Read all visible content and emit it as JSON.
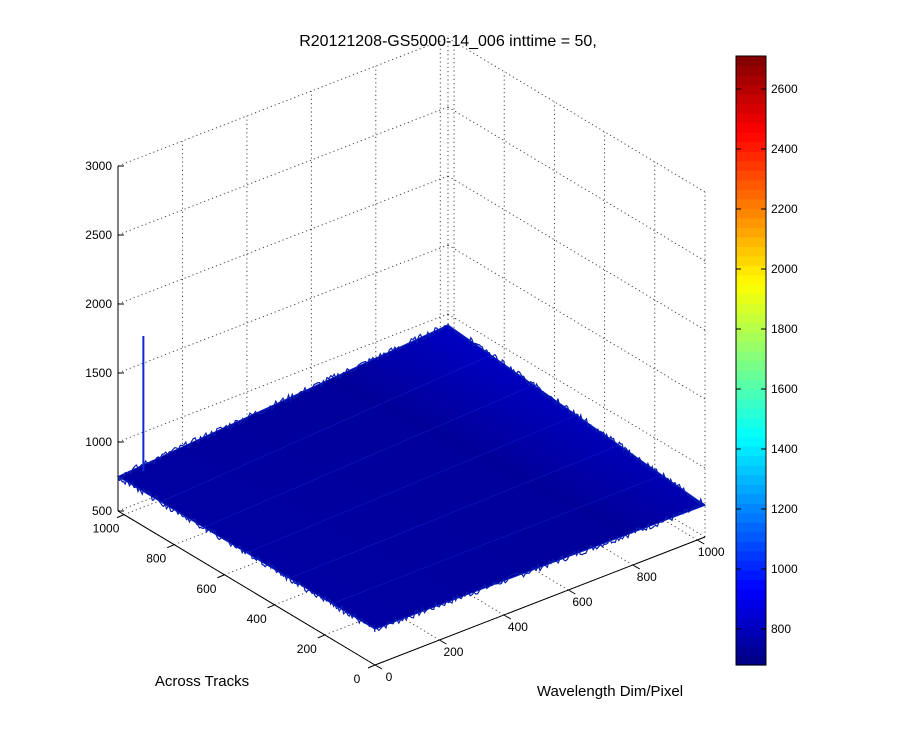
{
  "chart_data": {
    "type": "surface3d",
    "title": "R20121208-GS5000-14_006 inttime = 50,",
    "xlabel": "Wavelength Dim/Pixel",
    "ylabel": "Across Tracks",
    "zlabel": "",
    "xlim": [
      0,
      1024
    ],
    "ylim": [
      0,
      1024
    ],
    "zlim": [
      500,
      3000
    ],
    "x_ticks": [
      "0",
      "200",
      "400",
      "600",
      "800",
      "1000"
    ],
    "x_tick_values": [
      0,
      200,
      400,
      600,
      800,
      1000
    ],
    "y_ticks": [
      "0",
      "200",
      "400",
      "600",
      "800",
      "1000"
    ],
    "y_tick_values": [
      0,
      200,
      400,
      600,
      800,
      1000
    ],
    "z_ticks": [
      "500",
      "1000",
      "1500",
      "2000",
      "2500",
      "3000"
    ],
    "z_tick_values": [
      500,
      1000,
      1500,
      2000,
      2500,
      3000
    ],
    "grid": true,
    "surface": {
      "corner_values": {
        "x0_y0": 760,
        "x1024_y0": 730,
        "x0_y1024": 750,
        "x1024_y1024": 920
      },
      "noise_amplitude": 25,
      "spike": {
        "x": 60,
        "y": 1000,
        "z": 1740
      }
    },
    "colorbar": {
      "colormap": "jet",
      "range": [
        680,
        2710
      ],
      "ticks": [
        "800",
        "1000",
        "1200",
        "1400",
        "1600",
        "1800",
        "2000",
        "2200",
        "2400",
        "2600"
      ],
      "tick_values": [
        800,
        1000,
        1200,
        1400,
        1600,
        1800,
        2000,
        2200,
        2400,
        2600
      ],
      "location": "right"
    }
  }
}
